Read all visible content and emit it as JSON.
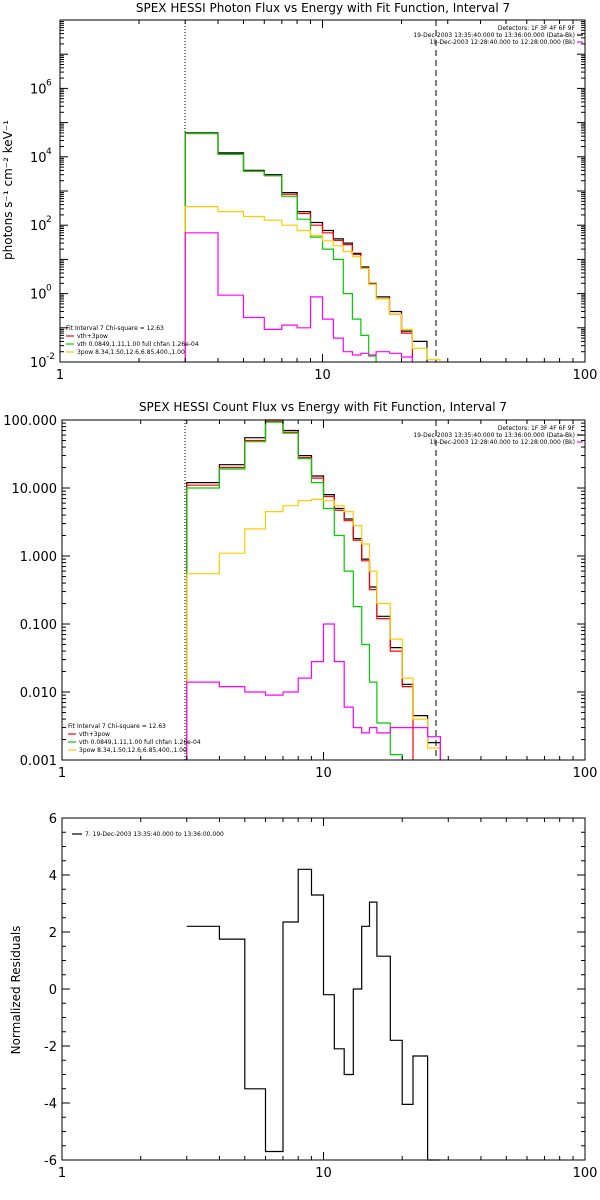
{
  "chart_data": [
    {
      "type": "line",
      "title": "SPEX HESSI Photon Flux vs Energy with Fit Function, Interval 7",
      "ylabel": "photons s⁻¹ cm⁻² keV⁻¹",
      "xlabel": "",
      "xscale": "log",
      "yscale": "log",
      "xlim": [
        1,
        100
      ],
      "ylim": [
        0.01,
        100000000
      ],
      "xtick_labels": [
        "1",
        "10",
        "100"
      ],
      "ytick_labels": [
        {
          "mant": "10",
          "exp": "-2"
        },
        {
          "mant": "10",
          "exp": "0"
        },
        {
          "mant": "10",
          "exp": "2"
        },
        {
          "mant": "10",
          "exp": "4"
        },
        {
          "mant": "10",
          "exp": "6"
        }
      ],
      "vertical_lines": [
        {
          "x": 3.0,
          "style": "dotted"
        },
        {
          "x": 28.0,
          "style": "dashed"
        }
      ],
      "legend_top_right": [
        {
          "text": "Detectors: 1F 3F 4F 6F 9F",
          "color": ""
        },
        {
          "text": "19-Dec-2003 13:35:40.000 to 13:36:00.000 (Data-Bk)",
          "color": "#000000"
        },
        {
          "text": "19-Dec-2003 12:28:40.000 to 12:28:00.000 (Bk)",
          "color": "#ff00ff"
        }
      ],
      "legend_bottom_left": [
        {
          "text": "Fit Interval 7    Chi-square = 12.63",
          "color": ""
        },
        {
          "text": "vth+3pow",
          "color": "#ff0000"
        },
        {
          "text": "vth 0.0849,1.11,1.00  full chfan 1.26e-04",
          "color": "#00cc00"
        },
        {
          "text": "3pow 8.34,1.50,12.6,6.85,400.,1.00",
          "color": "#ffcc00"
        }
      ],
      "edges": [
        3.0,
        4.0,
        5.0,
        6.0,
        7.0,
        8.0,
        9.0,
        10.0,
        11.0,
        12.0,
        13.0,
        14.0,
        15.0,
        16.0,
        18.0,
        20.0,
        22.0,
        25.0,
        28.0,
        32.0
      ],
      "series": [
        {
          "color": "#000000",
          "values": [
            50000,
            13000,
            4000,
            3000,
            900,
            250,
            120,
            70,
            40,
            30,
            15,
            6.0,
            2.0,
            0.8,
            0.3,
            0.08,
            0.04
          ]
        },
        {
          "color": "#ff0000",
          "values": [
            48000,
            12000,
            3800,
            2800,
            800,
            220,
            100,
            60,
            36,
            27,
            14,
            5.5,
            1.9,
            0.7,
            0.25,
            0.07
          ]
        },
        {
          "color": "#00cc00",
          "values": [
            48000,
            12000,
            3800,
            2800,
            700,
            150,
            45,
            20,
            10,
            1.0,
            0.18,
            0.06,
            0.015
          ]
        },
        {
          "color": "#ffcc00",
          "values": [
            350,
            250,
            180,
            140,
            100,
            70,
            50,
            35,
            25,
            17,
            12,
            5.5,
            1.9,
            0.7,
            0.25,
            0.09,
            0.025,
            0.012
          ]
        },
        {
          "color": "#ff00ff",
          "values": [
            60,
            0.9,
            0.2,
            0.09,
            0.12,
            0.1,
            0.8,
            0.18,
            0.05,
            0.02,
            0.016,
            0.018,
            0.016,
            0.02,
            0.018,
            0.014
          ]
        }
      ]
    },
    {
      "type": "line",
      "title": "SPEX HESSI Count Flux vs Energy with Fit Function, Interval 7",
      "xlabel": "",
      "ylabel": "",
      "xscale": "log",
      "yscale": "log",
      "xlim": [
        1,
        100
      ],
      "ylim": [
        0.001,
        100.0
      ],
      "xtick_labels": [
        "1",
        "10",
        "100"
      ],
      "ytick_labels": [
        {
          "text": "0.001",
          "value": 0.001
        },
        {
          "text": "0.010",
          "value": 0.01
        },
        {
          "text": "0.100",
          "value": 0.1
        },
        {
          "text": "1.000",
          "value": 1.0
        },
        {
          "text": "10.000",
          "value": 10.0
        },
        {
          "text": "100.000",
          "value": 100.0
        }
      ],
      "vertical_lines": [
        {
          "x": 3.0,
          "style": "dotted"
        },
        {
          "x": 28.0,
          "style": "dashed"
        }
      ],
      "legend_top_right": [
        {
          "text": "Detectors: 1F 3F 4F 6F 9F",
          "color": ""
        },
        {
          "text": "19-Dec-2003 13:35:40.000 to 13:36:00.000 (Data-Bk)",
          "color": "#000000"
        },
        {
          "text": "19-Dec-2003 12:28:40.000 to 12:28:00.000 (Bk)",
          "color": "#ff00ff"
        }
      ],
      "legend_bottom_left": [
        {
          "text": "Fit Interval 7    Chi-square = 12.63",
          "color": ""
        },
        {
          "text": "vth+3pow",
          "color": "#ff0000"
        },
        {
          "text": "vth 0.0849,1.11,1.00  full chfan 1.26e-04",
          "color": "#00cc00"
        },
        {
          "text": "3pow 8.34,1.50,12.6,6.85,400.,1.00",
          "color": "#ffcc00"
        }
      ],
      "edges": [
        3.0,
        4.0,
        5.0,
        6.0,
        7.0,
        8.0,
        9.0,
        10.0,
        11.0,
        12.0,
        13.0,
        14.0,
        15.0,
        16.0,
        18.0,
        20.0,
        22.0,
        25.0,
        28.0,
        32.0
      ],
      "series": [
        {
          "color": "#000000",
          "values": [
            12,
            22,
            55,
            100,
            70,
            30,
            15,
            8.0,
            5.0,
            3.5,
            1.8,
            0.9,
            0.35,
            0.13,
            0.045,
            0.013,
            0.0045,
            0.0018
          ]
        },
        {
          "color": "#ff0000",
          "values": [
            11,
            20,
            50,
            95,
            66,
            28,
            14,
            7.5,
            4.7,
            3.3,
            1.7,
            0.85,
            0.32,
            0.12,
            0.04,
            0.012
          ]
        },
        {
          "color": "#00cc00",
          "values": [
            10,
            19,
            48,
            93,
            64,
            27,
            12,
            5.0,
            2.0,
            0.6,
            0.18,
            0.05,
            0.014,
            0.0035,
            0.0012
          ]
        },
        {
          "color": "#ffcc00",
          "values": [
            0.55,
            1.1,
            2.5,
            4.5,
            5.5,
            6.5,
            6.8,
            6.5,
            5.5,
            4.5,
            2.8,
            1.5,
            0.6,
            0.2,
            0.06,
            0.016,
            0.004,
            0.0015
          ]
        },
        {
          "color": "#ff00ff",
          "values": [
            0.014,
            0.012,
            0.01,
            0.009,
            0.01,
            0.016,
            0.028,
            0.1,
            0.028,
            0.006,
            0.003,
            0.0025,
            0.003,
            0.0025,
            0.003,
            0.003,
            0.003,
            0.0022
          ]
        }
      ]
    },
    {
      "type": "line",
      "title": "",
      "xlabel": "",
      "ylabel": "Normalized Residuals",
      "xscale": "log",
      "yscale": "linear",
      "xlim": [
        1,
        100
      ],
      "ylim": [
        -6,
        6
      ],
      "xtick_labels": [
        "1",
        "10",
        "100"
      ],
      "ytick_labels": [
        {
          "text": "-6",
          "value": -6
        },
        {
          "text": "-4",
          "value": -4
        },
        {
          "text": "-2",
          "value": -2
        },
        {
          "text": "0",
          "value": 0
        },
        {
          "text": "2",
          "value": 2
        },
        {
          "text": "4",
          "value": 4
        },
        {
          "text": "6",
          "value": 6
        }
      ],
      "vertical_lines": [],
      "legend_top_left": [
        {
          "text": "7. 19-Dec-2003 13:35:40.000 to 13:36:00.000",
          "color": "#000000"
        }
      ],
      "edges": [
        3.0,
        4.0,
        5.0,
        6.0,
        7.0,
        8.0,
        9.0,
        10.0,
        11.0,
        12.0,
        13.0,
        14.0,
        15.0,
        16.0,
        18.0,
        20.0,
        22.0,
        25.0,
        28.0
      ],
      "series": [
        {
          "color": "#000000",
          "values": [
            2.2,
            1.75,
            -3.5,
            -5.7,
            2.35,
            4.2,
            3.3,
            -0.2,
            -2.1,
            -3.0,
            0.0,
            2.2,
            3.05,
            1.15,
            -1.8,
            -4.05,
            -2.35,
            -6.0
          ]
        }
      ]
    }
  ]
}
